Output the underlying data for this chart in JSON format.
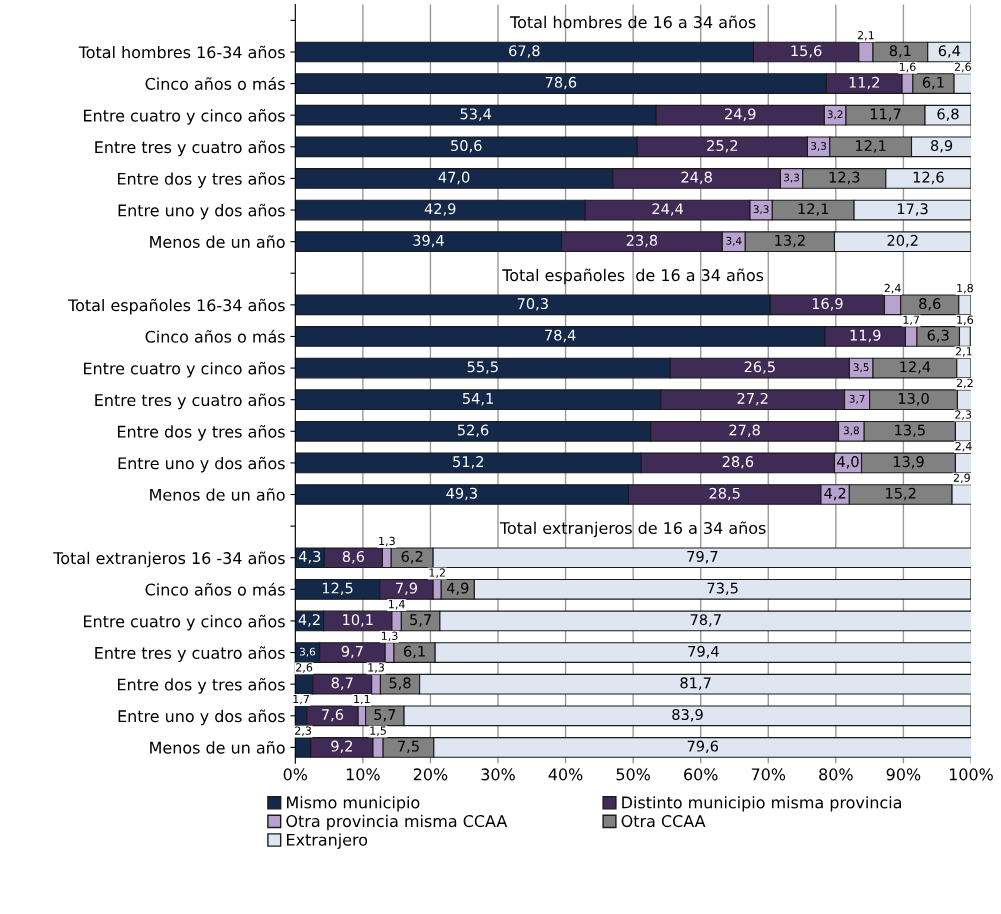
{
  "chart_data": {
    "type": "bar",
    "orientation": "horizontal",
    "stacked": true,
    "grid": "x",
    "legend": "bottom",
    "annotations": [
      "Total hombres de 16 a 34 años",
      "Total españoles  de 16 a 34 años",
      "Total extranjeros de 16 a 34 años"
    ],
    "categories": [
      null,
      "Total hombres 16-34 años",
      "Cinco años o más",
      "Entre cuatro y cinco años",
      "Entre tres y cuatro años",
      "Entre dos y tres años",
      "Entre uno y dos años",
      "Menos de un año",
      null,
      "Total españoles 16-34 años",
      "Cinco años o más",
      "Entre cuatro y cinco años",
      "Entre tres y cuatro años",
      "Entre dos y tres años",
      "Entre uno y dos años",
      "Menos de un año",
      null,
      "Total extranjeros 16 -34 años",
      "Cinco años o más",
      "Entre cuatro y cinco años",
      "Entre tres y cuatro años",
      "Entre dos y tres años",
      "Entre uno y dos años",
      "Menos de un año"
    ],
    "xlim": [
      0,
      100
    ],
    "xticks": [
      {
        "value": 0,
        "label": "0%"
      },
      {
        "value": 10,
        "label": "10%"
      },
      {
        "value": 20,
        "label": "20%"
      },
      {
        "value": 30,
        "label": "30%"
      },
      {
        "value": 40,
        "label": "40%"
      },
      {
        "value": 50,
        "label": "50%"
      },
      {
        "value": 60,
        "label": "60%"
      },
      {
        "value": 70,
        "label": "70%"
      },
      {
        "value": 80,
        "label": "80%"
      },
      {
        "value": 90,
        "label": "90%"
      },
      {
        "value": 100,
        "label": "100%"
      }
    ],
    "series": [
      {
        "name": "Mismo municipio",
        "color": "#14284a",
        "values": [
          null,
          67.8,
          78.6,
          53.4,
          50.6,
          47.0,
          42.9,
          39.4,
          null,
          70.3,
          78.4,
          55.5,
          54.1,
          52.6,
          51.2,
          49.3,
          null,
          4.3,
          12.5,
          4.2,
          3.6,
          2.6,
          1.7,
          2.3
        ],
        "value_labels": [
          null,
          "67,8",
          "78,6",
          "53,4",
          "50,6",
          "47,0",
          "42,9",
          "39,4",
          null,
          "70,3",
          "78,4",
          "55,5",
          "54,1",
          "52,6",
          "51,2",
          "49,3",
          null,
          "4,3",
          "12,5",
          "4,2",
          "3,6",
          "2,6",
          "1,7",
          "2,3"
        ]
      },
      {
        "name": "Distinto municipio misma provincia",
        "color": "#3f2b55",
        "values": [
          null,
          15.6,
          11.2,
          24.9,
          25.2,
          24.8,
          24.4,
          23.8,
          null,
          16.9,
          11.9,
          26.5,
          27.2,
          27.8,
          28.6,
          28.5,
          null,
          8.6,
          7.9,
          10.1,
          9.7,
          8.7,
          7.6,
          9.2
        ],
        "value_labels": [
          null,
          "15,6",
          "11,2",
          "24,9",
          "25,2",
          "24,8",
          "24,4",
          "23,8",
          null,
          "16,9",
          "11,9",
          "26,5",
          "27,2",
          "27,8",
          "28,6",
          "28,5",
          null,
          "8,6",
          "7,9",
          "10,1",
          "9,7",
          "8,7",
          "7,6",
          "9,2"
        ]
      },
      {
        "name": "Otra provincia misma CCAA",
        "color": "#b8a3d0",
        "values": [
          null,
          2.1,
          1.6,
          3.2,
          3.3,
          3.3,
          3.3,
          3.4,
          null,
          2.4,
          1.7,
          3.5,
          3.7,
          3.8,
          4.0,
          4.2,
          null,
          1.3,
          1.2,
          1.4,
          1.3,
          1.3,
          1.1,
          1.5
        ],
        "value_labels": [
          null,
          "2,1",
          "1,6",
          "3,2",
          "3,3",
          "3,3",
          "3,3",
          "3,4",
          null,
          "2,4",
          "1,7",
          "3,5",
          "3,7",
          "3,8",
          "4,0",
          "4,2",
          null,
          "1,3",
          "1,2",
          "1,4",
          "1,3",
          "1,3",
          "1,1",
          "1,5"
        ]
      },
      {
        "name": "Otra CCAA",
        "color": "#818181",
        "values": [
          null,
          8.1,
          6.1,
          11.7,
          12.1,
          12.3,
          12.1,
          13.2,
          null,
          8.6,
          6.3,
          12.4,
          13.0,
          13.5,
          13.9,
          15.2,
          null,
          6.2,
          4.9,
          5.7,
          6.1,
          5.8,
          5.7,
          7.5
        ],
        "value_labels": [
          null,
          "8,1",
          "6,1",
          "11,7",
          "12,1",
          "12,3",
          "12,1",
          "13,2",
          null,
          "8,6",
          "6,3",
          "12,4",
          "13,0",
          "13,5",
          "13,9",
          "15,2",
          null,
          "6,2",
          "4,9",
          "5,7",
          "6,1",
          "5,8",
          "5,7",
          "7,5"
        ]
      },
      {
        "name": "Extranjero",
        "color": "#dfe5f1",
        "values": [
          null,
          6.4,
          2.6,
          6.8,
          8.9,
          12.6,
          17.3,
          20.2,
          null,
          1.8,
          1.6,
          2.1,
          2.2,
          2.3,
          2.4,
          2.9,
          null,
          79.7,
          73.5,
          78.7,
          79.4,
          81.7,
          83.9,
          79.6
        ],
        "value_labels": [
          null,
          "6,4",
          "2,6",
          "6,8",
          "8,9",
          "12,6",
          "17,3",
          "20,2",
          null,
          "1,8",
          "1,6",
          "2,1",
          "2,2",
          "2,3",
          "2,4",
          "2,9",
          null,
          "79,7",
          "73,5",
          "78,7",
          "79,4",
          "81,7",
          "83,9",
          "79,6"
        ]
      }
    ]
  }
}
